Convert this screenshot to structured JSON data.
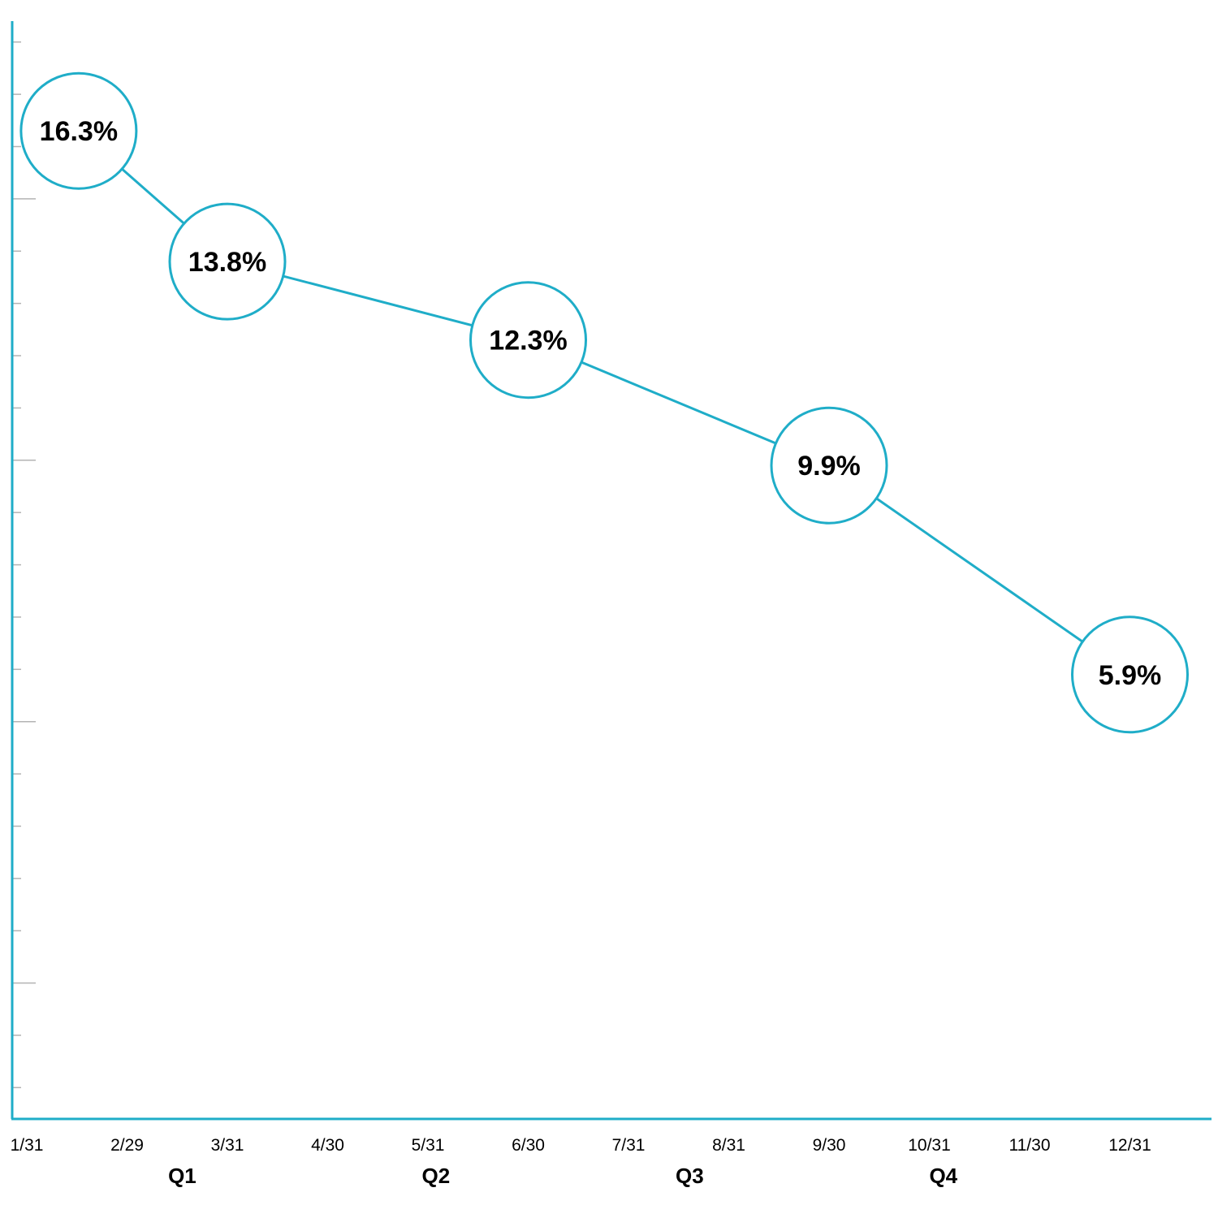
{
  "chart_data": {
    "type": "line",
    "x_tick_labels": [
      "1/31",
      "2/29",
      "3/31",
      "4/30",
      "5/31",
      "6/30",
      "7/31",
      "8/31",
      "9/30",
      "10/31",
      "11/30",
      "12/31"
    ],
    "quarter_labels": [
      "Q1",
      "Q2",
      "Q3",
      "Q4"
    ],
    "series": [
      {
        "points": [
          {
            "x": "2/15",
            "y": 16.3,
            "label": "16.3%"
          },
          {
            "x": "3/31",
            "y": 13.8,
            "label": "13.8%"
          },
          {
            "x": "6/30",
            "y": 12.3,
            "label": "12.3%"
          },
          {
            "x": "9/30",
            "y": 9.9,
            "label": "9.9%"
          },
          {
            "x": "12/31",
            "y": 5.9,
            "label": "5.9%"
          }
        ]
      }
    ],
    "ylim": [
      -2.6,
      18.4
    ],
    "y_ticks_every": 1,
    "grid": false,
    "legend": "none",
    "colors": {
      "accent": "#1fadc8",
      "text": "#000000",
      "tick": "#b3b3b3"
    }
  }
}
